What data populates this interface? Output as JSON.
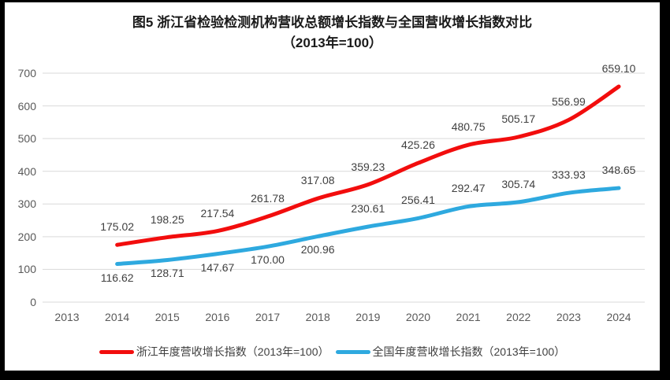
{
  "chart_data": {
    "type": "line",
    "title": "图5  浙江省检验检测机构营收总额增长指数与全国营收增长指数对比",
    "subtitle": "（2013年=100）",
    "x_labels": [
      "2013",
      "2014",
      "2015",
      "2016",
      "2017",
      "2018",
      "2019",
      "2020",
      "2021",
      "2022",
      "2023",
      "2024"
    ],
    "ylim": [
      0,
      700
    ],
    "y_ticks": [
      0,
      100,
      200,
      300,
      400,
      500,
      600,
      700
    ],
    "grid": "horizontal",
    "grid_color": "#d9d9d9",
    "legend_position": "bottom",
    "series": [
      {
        "name": "浙江年度营收增长指数（2013年=100）",
        "color": "#f20d0d",
        "x_start_index": 1,
        "values": [
          175.02,
          198.25,
          217.54,
          261.78,
          317.08,
          359.23,
          425.26,
          480.75,
          505.17,
          556.99,
          659.1
        ],
        "label_positions": [
          "above",
          "above",
          "above",
          "above",
          "above",
          "above",
          "above",
          "above",
          "above",
          "above",
          "above"
        ]
      },
      {
        "name": "全国年度营收增长指数（2013年=100）",
        "color": "#2ea9df",
        "x_start_index": 1,
        "values": [
          116.62,
          128.71,
          147.67,
          170.0,
          200.96,
          230.61,
          256.41,
          292.47,
          305.74,
          333.93,
          348.65
        ],
        "label_positions": [
          "below",
          "below",
          "below",
          "below",
          "below",
          "above",
          "above",
          "above",
          "above",
          "above",
          "above"
        ]
      }
    ]
  }
}
